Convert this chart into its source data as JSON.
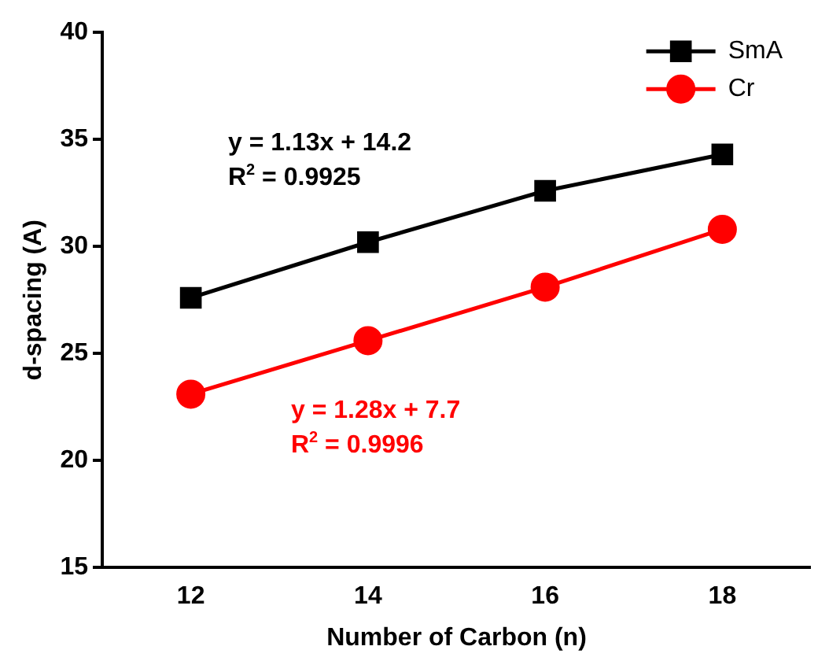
{
  "chart_data": {
    "type": "line",
    "xlabel": "Number of Carbon (n)",
    "ylabel": "d-spacing (A)",
    "x": [
      12,
      14,
      16,
      18
    ],
    "series": [
      {
        "name": "SmA",
        "color": "#000000",
        "values": [
          27.6,
          30.2,
          32.6,
          34.3
        ],
        "marker": "square"
      },
      {
        "name": "Cr",
        "color": "#ff0000",
        "values": [
          23.1,
          25.6,
          28.1,
          30.8
        ],
        "marker": "circle"
      }
    ],
    "xlim": [
      11,
      19
    ],
    "xticks": [
      12,
      14,
      16,
      18
    ],
    "ylim": [
      15,
      40
    ],
    "yticks": [
      15,
      20,
      25,
      30,
      35,
      40
    ],
    "grid": false,
    "legend": "top right",
    "annotations": [
      "y = 1.13x + 14.2",
      "R$^{2}$ = 0.9925",
      "y = 1.28x + 7.7",
      "R$^{2}$ = 0.9996"
    ]
  }
}
